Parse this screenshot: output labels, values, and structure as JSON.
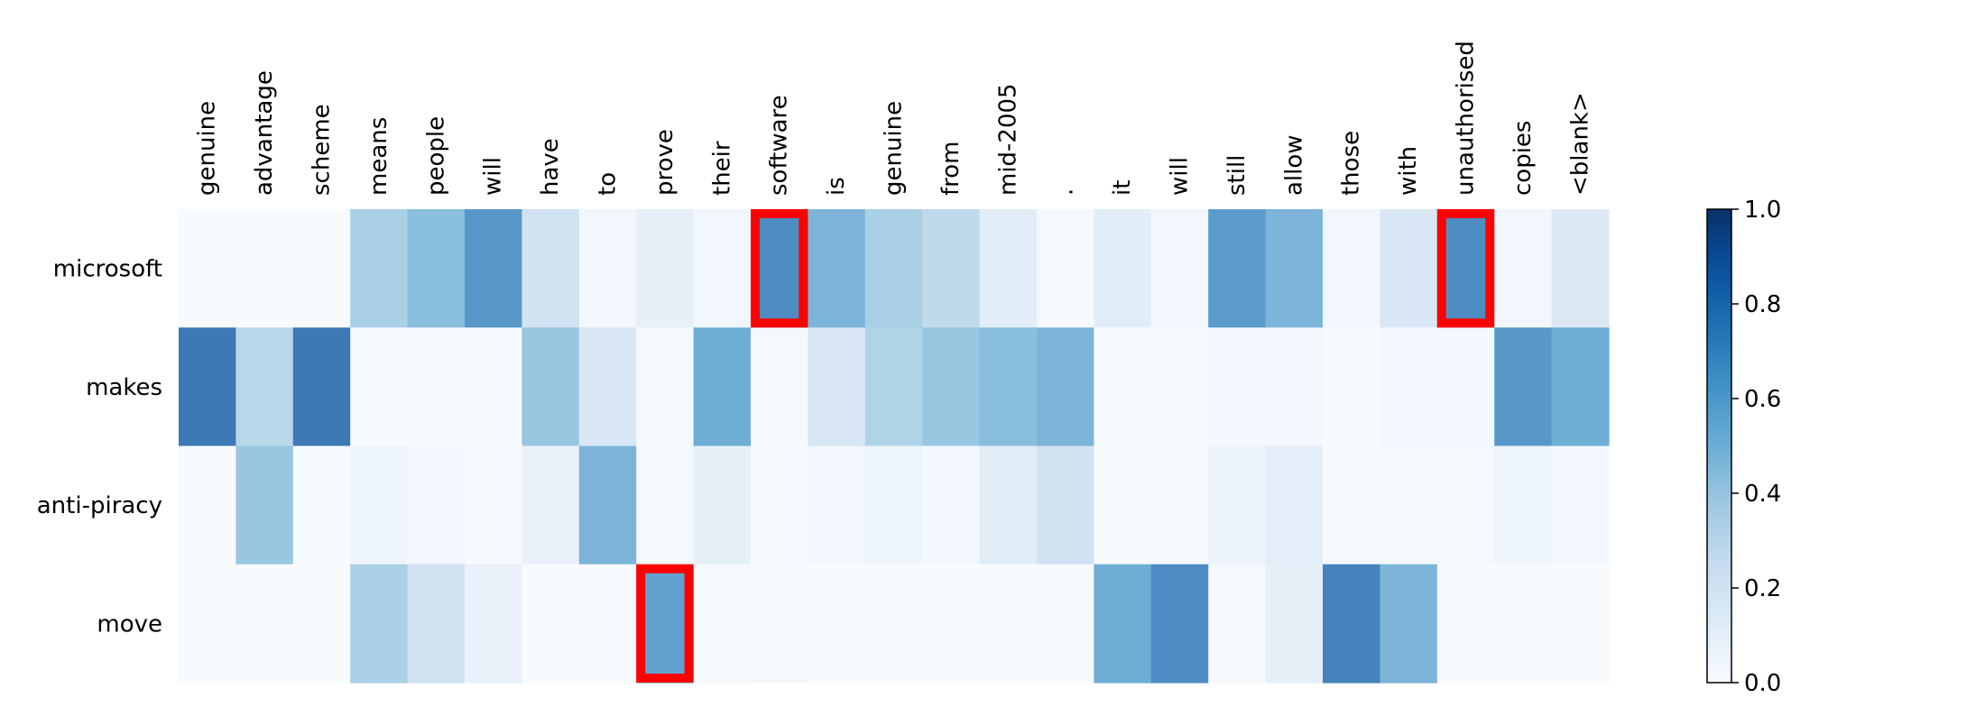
{
  "chart_data": {
    "type": "heatmap",
    "title": "",
    "xlabel": "",
    "ylabel": "",
    "x_labels": [
      "genuine",
      "advantage",
      "scheme",
      "means",
      "people",
      "will",
      "have",
      "to",
      "prove",
      "their",
      "software",
      "is",
      "genuine",
      "from",
      "mid-2005",
      ".",
      "it",
      "will",
      "still",
      "allow",
      "those",
      "with",
      "unauthorised",
      "copies",
      "<blank>"
    ],
    "y_labels": [
      "microsoft",
      "makes",
      "anti-piracy",
      "move"
    ],
    "values": [
      [
        0.01,
        0.01,
        0.01,
        0.4,
        0.5,
        0.7,
        0.25,
        0.05,
        0.12,
        0.05,
        0.75,
        0.55,
        0.4,
        0.32,
        0.15,
        0.02,
        0.15,
        0.05,
        0.68,
        0.55,
        0.05,
        0.2,
        0.75,
        0.05,
        0.18
      ],
      [
        0.85,
        0.35,
        0.85,
        0.01,
        0.03,
        0.02,
        0.45,
        0.2,
        0.02,
        0.6,
        0.02,
        0.2,
        0.38,
        0.45,
        0.5,
        0.55,
        0.01,
        0.01,
        0.04,
        0.05,
        0.01,
        0.04,
        0.04,
        0.7,
        0.6
      ],
      [
        0.01,
        0.45,
        0.01,
        0.06,
        0.05,
        0.02,
        0.1,
        0.55,
        0.03,
        0.12,
        0.02,
        0.05,
        0.07,
        0.04,
        0.15,
        0.25,
        0.01,
        0.01,
        0.08,
        0.13,
        0.02,
        0.03,
        0.02,
        0.06,
        0.05
      ],
      [
        0.01,
        0.01,
        0.01,
        0.4,
        0.25,
        0.1,
        0.01,
        0.01,
        0.65,
        0.02,
        0.03,
        0.01,
        0.01,
        0.01,
        0.01,
        0.01,
        0.6,
        0.75,
        0.02,
        0.12,
        0.8,
        0.55,
        0.01,
        0.01,
        0.01
      ]
    ],
    "highlighted_cells": [
      [
        0,
        10
      ],
      [
        0,
        22
      ],
      [
        3,
        8
      ]
    ],
    "highlight_color": "#ff0000",
    "colormap": "Blues",
    "colorbar": {
      "range": [
        0.0,
        1.0
      ],
      "ticks": [
        "0.0",
        "0.2",
        "0.4",
        "0.6",
        "0.8",
        "1.0"
      ]
    }
  }
}
